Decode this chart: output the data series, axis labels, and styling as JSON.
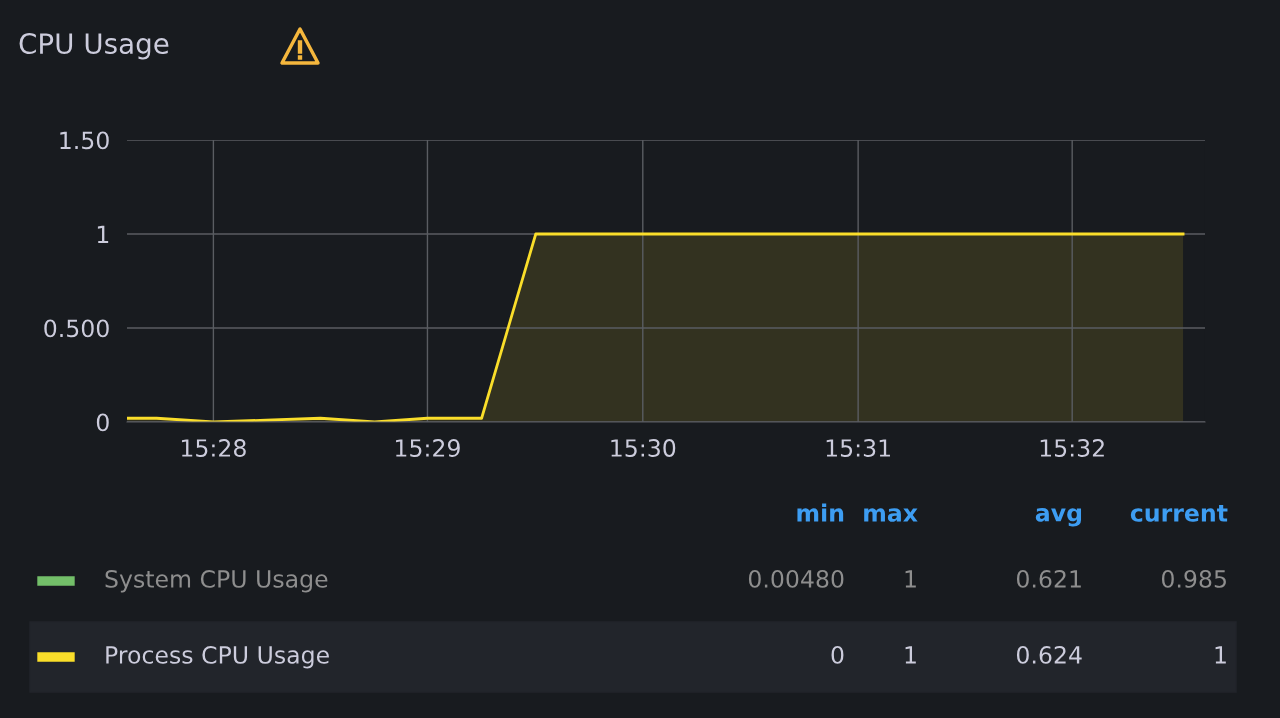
{
  "chart_data": {
    "type": "area",
    "title": "CPU Usage",
    "x": [
      15.46,
      15.4623,
      15.4667,
      15.4708,
      15.475,
      15.4792,
      15.4833,
      15.4875,
      15.4917,
      15.5,
      15.5083,
      15.5167,
      15.525,
      15.5333,
      15.5419
    ],
    "series": [
      {
        "name": "System CPU Usage",
        "color": "#73bf69",
        "values": [
          null,
          null,
          null,
          null,
          null,
          null,
          null,
          null,
          null,
          null,
          null,
          null,
          null,
          null,
          null
        ]
      },
      {
        "name": "Process CPU Usage",
        "color": "#fade2a",
        "values": [
          0.02,
          0.02,
          0,
          0.01,
          0.02,
          0,
          0.02,
          0.02,
          1,
          1,
          1,
          1,
          1,
          1,
          1
        ]
      }
    ],
    "xlim": [
      15.46,
      15.5436
    ],
    "xticks": [
      {
        "value": 15.4667,
        "label": "15:28"
      },
      {
        "value": 15.4833,
        "label": "15:29"
      },
      {
        "value": 15.5,
        "label": "15:30"
      },
      {
        "value": 15.5167,
        "label": "15:31"
      },
      {
        "value": 15.5333,
        "label": "15:32"
      }
    ],
    "ylim": [
      0,
      1.5
    ],
    "yticks": [
      0,
      {
        "value": 0.5,
        "label": "0.500"
      },
      1,
      {
        "value": 1.5,
        "label": "1.50"
      }
    ],
    "grid": true,
    "legend": "bottom",
    "annotations": [
      "min",
      "max",
      "avg",
      "current",
      "0.00480",
      "1",
      "0.621",
      "0.985",
      "0",
      "1",
      "0.624",
      "1"
    ]
  }
}
